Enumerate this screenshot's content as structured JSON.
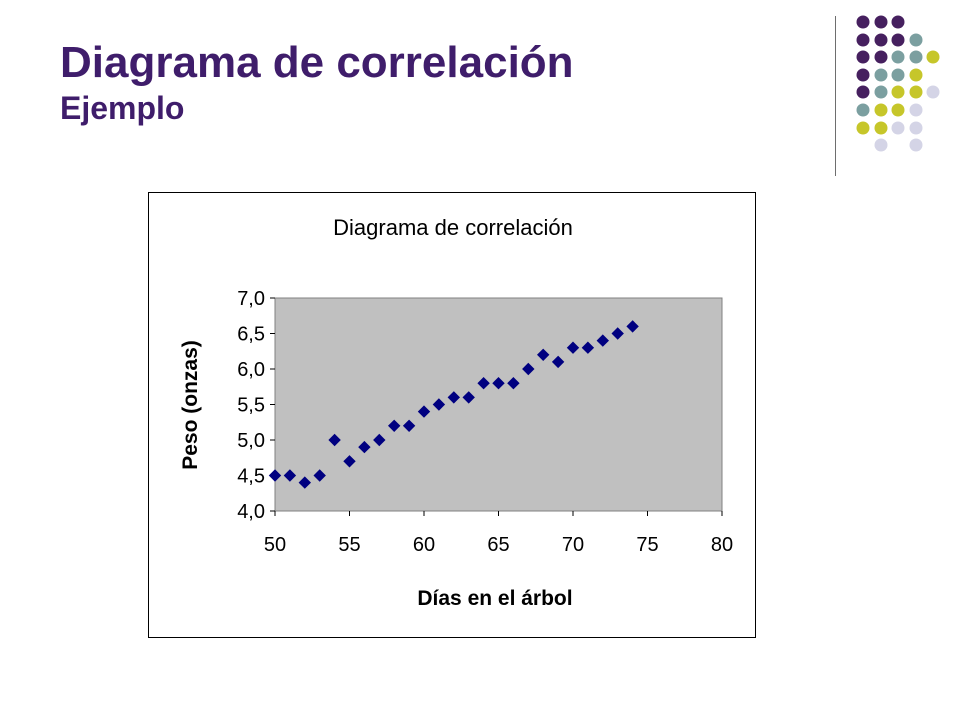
{
  "slide": {
    "title": "Diagrama de correlación",
    "subtitle": "Ejemplo"
  },
  "colors": {
    "title": "#3f1d6b",
    "deco_purple": "#46205f",
    "deco_teal": "#7b9fa0",
    "deco_yellow": "#c6c62a",
    "deco_lavender": "#d4d4e6",
    "plot_background": "#c0c0c0",
    "marker": "#000080"
  },
  "chart_data": {
    "type": "scatter",
    "title": "Diagrama de correlación",
    "xlabel": "Días en el árbol",
    "ylabel": "Peso (onzas)",
    "xlim": [
      50,
      80
    ],
    "ylim": [
      4.0,
      7.0
    ],
    "x_ticks": [
      "50",
      "55",
      "60",
      "65",
      "70",
      "75",
      "80"
    ],
    "y_ticks": [
      "4,0",
      "4,5",
      "5,0",
      "5,5",
      "6,0",
      "6,5",
      "7,0"
    ],
    "grid": false,
    "legend": "none",
    "marker": "diamond",
    "points": [
      {
        "x": 50,
        "y": 4.5
      },
      {
        "x": 51,
        "y": 4.5
      },
      {
        "x": 52,
        "y": 4.4
      },
      {
        "x": 53,
        "y": 4.5
      },
      {
        "x": 54,
        "y": 5.0
      },
      {
        "x": 55,
        "y": 4.7
      },
      {
        "x": 56,
        "y": 4.9
      },
      {
        "x": 57,
        "y": 5.0
      },
      {
        "x": 58,
        "y": 5.2
      },
      {
        "x": 59,
        "y": 5.2
      },
      {
        "x": 60,
        "y": 5.4
      },
      {
        "x": 61,
        "y": 5.5
      },
      {
        "x": 62,
        "y": 5.6
      },
      {
        "x": 63,
        "y": 5.6
      },
      {
        "x": 64,
        "y": 5.8
      },
      {
        "x": 65,
        "y": 5.8
      },
      {
        "x": 66,
        "y": 5.8
      },
      {
        "x": 67,
        "y": 6.0
      },
      {
        "x": 68,
        "y": 6.2
      },
      {
        "x": 69,
        "y": 6.1
      },
      {
        "x": 70,
        "y": 6.3
      },
      {
        "x": 71,
        "y": 6.3
      },
      {
        "x": 72,
        "y": 6.4
      },
      {
        "x": 73,
        "y": 6.5
      },
      {
        "x": 74,
        "y": 6.6
      }
    ]
  }
}
